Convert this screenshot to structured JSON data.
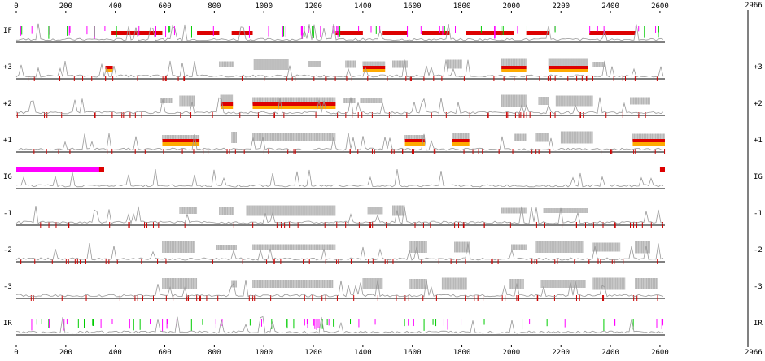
{
  "axis": {
    "min": 0,
    "seq_length": 2620,
    "total_length": 2966,
    "tick_step": 200,
    "top_ticks": [
      "0",
      "200",
      "400",
      "600",
      "800",
      "1000",
      "1200",
      "1400",
      "1600",
      "1800",
      "2000",
      "2200",
      "2400",
      "2600"
    ],
    "bottom_ticks": [
      "0",
      "200",
      "400",
      "600",
      "800",
      "1000",
      "1200",
      "1400",
      "1600",
      "1800",
      "2000",
      "2200",
      "2400",
      "2600"
    ],
    "end_label_top": "2966",
    "end_label_bottom": "2966"
  },
  "tracks": [
    {
      "id": "IF",
      "label": "IF",
      "label_right": ""
    },
    {
      "id": "plus3",
      "label": "+3",
      "label_right": "+3"
    },
    {
      "id": "plus2",
      "label": "+2",
      "label_right": "+2"
    },
    {
      "id": "plus1",
      "label": "+1",
      "label_right": "+1"
    },
    {
      "id": "IG",
      "label": "IG",
      "label_right": "IG"
    },
    {
      "id": "minus1",
      "label": "-1",
      "label_right": "-1"
    },
    {
      "id": "minus2",
      "label": "-2",
      "label_right": "-2"
    },
    {
      "id": "minus3",
      "label": "-3",
      "label_right": "-3"
    },
    {
      "id": "IR",
      "label": "IR",
      "label_right": "IR"
    }
  ],
  "features": {
    "IF_red_bars": [
      [
        385,
        590
      ],
      [
        730,
        820
      ],
      [
        870,
        955
      ],
      [
        1290,
        1400
      ],
      [
        1480,
        1580
      ],
      [
        1640,
        1750
      ],
      [
        1815,
        2010
      ],
      [
        2060,
        2150
      ],
      [
        2315,
        2500
      ]
    ],
    "frame_orfs": {
      "plus3": [
        [
          360,
          390
        ],
        [
          1400,
          1490
        ],
        [
          1960,
          2060
        ],
        [
          2150,
          2310
        ]
      ],
      "plus2": [
        [
          825,
          875
        ],
        [
          955,
          1290
        ]
      ],
      "plus1": [
        [
          590,
          740
        ],
        [
          1570,
          1650
        ],
        [
          1760,
          1830
        ],
        [
          2490,
          2620
        ]
      ]
    },
    "IG_magenta_bar": [
      0,
      340
    ],
    "IG_red_marks": [
      [
        335,
        355
      ],
      [
        2600,
        2620
      ]
    ],
    "gray_blocks": {
      "plus3": [
        [
          820,
          880
        ],
        [
          960,
          1100
        ],
        [
          1180,
          1230
        ],
        [
          1330,
          1370
        ],
        [
          1400,
          1490
        ],
        [
          1520,
          1580
        ],
        [
          1740,
          1800
        ],
        [
          1960,
          2060
        ],
        [
          2150,
          2310
        ],
        [
          2330,
          2380
        ]
      ],
      "plus2": [
        [
          580,
          630
        ],
        [
          660,
          720
        ],
        [
          825,
          875
        ],
        [
          955,
          1290
        ],
        [
          1320,
          1370
        ],
        [
          1390,
          1480
        ],
        [
          1960,
          2060
        ],
        [
          2110,
          2150
        ],
        [
          2180,
          2330
        ],
        [
          2480,
          2560
        ]
      ],
      "plus1": [
        [
          590,
          740
        ],
        [
          870,
          890
        ],
        [
          955,
          1290
        ],
        [
          1570,
          1650
        ],
        [
          1760,
          1830
        ],
        [
          2010,
          2060
        ],
        [
          2100,
          2150
        ],
        [
          2200,
          2330
        ],
        [
          2490,
          2620
        ]
      ],
      "minus1": [
        [
          660,
          730
        ],
        [
          820,
          880
        ],
        [
          930,
          1290
        ],
        [
          1420,
          1480
        ],
        [
          1520,
          1570
        ],
        [
          1960,
          2060
        ],
        [
          2130,
          2310
        ]
      ],
      "minus2": [
        [
          590,
          720
        ],
        [
          810,
          890
        ],
        [
          955,
          1290
        ],
        [
          1590,
          1660
        ],
        [
          1770,
          1830
        ],
        [
          2000,
          2060
        ],
        [
          2100,
          2290
        ],
        [
          2330,
          2440
        ],
        [
          2500,
          2560
        ]
      ],
      "minus3": [
        [
          590,
          730
        ],
        [
          870,
          890
        ],
        [
          955,
          1280
        ],
        [
          1400,
          1480
        ],
        [
          1590,
          1660
        ],
        [
          1720,
          1820
        ],
        [
          1990,
          2050
        ],
        [
          2120,
          2300
        ],
        [
          2330,
          2460
        ],
        [
          2500,
          2590
        ]
      ]
    }
  },
  "colors": {
    "red": "#dd0000",
    "orange": "#ffaa00",
    "magenta": "#ff00ff",
    "green": "#00cc00",
    "gray_fill": "#c8c8c8",
    "gray_line": "#999999",
    "stop_red": "#cc0000",
    "baseline": "#000000"
  }
}
